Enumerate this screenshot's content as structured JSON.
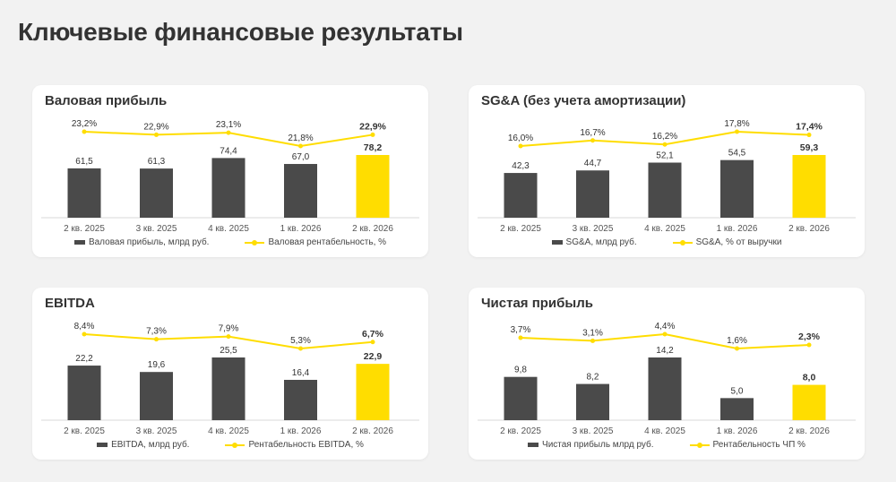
{
  "page": {
    "title": "Ключевые финансовые результаты"
  },
  "colors": {
    "bar": "#4a4a4a",
    "highlight": "#FFDD00",
    "line": "#FFDD00",
    "axis": "#d9d9d9"
  },
  "chart_data": [
    {
      "type": "bar",
      "title": "Валовая прибыль",
      "categories": [
        "2 кв. 2025",
        "3 кв. 2025",
        "4 кв. 2025",
        "1 кв. 2026",
        "2 кв. 2026"
      ],
      "series": [
        {
          "name": "Валовая прибыль, млрд руб.",
          "type": "bar",
          "values": [
            61.5,
            61.3,
            74.4,
            67.0,
            78.2
          ],
          "labels": [
            "61,5",
            "61,3",
            "74,4",
            "67,0",
            "78,2"
          ]
        },
        {
          "name": "Валовая рентабельность, %",
          "type": "line",
          "values": [
            23.2,
            22.9,
            23.1,
            21.8,
            22.9
          ],
          "labels": [
            "23,2%",
            "22,9%",
            "23,1%",
            "21,8%",
            "22,9%"
          ]
        }
      ],
      "highlight_index": 4,
      "grid": false,
      "legend": "bottom"
    },
    {
      "type": "bar",
      "title": "SG&A (без учета амортизации)",
      "categories": [
        "2 кв. 2025",
        "3 кв. 2025",
        "4 кв. 2025",
        "1 кв. 2026",
        "2 кв. 2026"
      ],
      "series": [
        {
          "name": "SG&A, млрд руб.",
          "type": "bar",
          "values": [
            42.3,
            44.7,
            52.1,
            54.5,
            59.3
          ],
          "labels": [
            "42,3",
            "44,7",
            "52,1",
            "54,5",
            "59,3"
          ]
        },
        {
          "name": "SG&A, % от выручки",
          "type": "line",
          "values": [
            16.0,
            16.7,
            16.2,
            17.8,
            17.4
          ],
          "labels": [
            "16,0%",
            "16,7%",
            "16,2%",
            "17,8%",
            "17,4%"
          ]
        }
      ],
      "highlight_index": 4,
      "grid": false,
      "legend": "bottom"
    },
    {
      "type": "bar",
      "title": "EBITDA",
      "categories": [
        "2 кв. 2025",
        "3 кв. 2025",
        "4 кв. 2025",
        "1 кв. 2026",
        "2 кв. 2026"
      ],
      "series": [
        {
          "name": "EBITDA, млрд руб.",
          "type": "bar",
          "values": [
            22.2,
            19.6,
            25.5,
            16.4,
            22.9
          ],
          "labels": [
            "22,2",
            "19,6",
            "25,5",
            "16,4",
            "22,9"
          ]
        },
        {
          "name": "Рентабельность EBITDA, %",
          "type": "line",
          "values": [
            8.4,
            7.3,
            7.9,
            5.3,
            6.7
          ],
          "labels": [
            "8,4%",
            "7,3%",
            "7,9%",
            "5,3%",
            "6,7%"
          ]
        }
      ],
      "highlight_index": 4,
      "grid": false,
      "legend": "bottom"
    },
    {
      "type": "bar",
      "title": "Чистая прибыль",
      "categories": [
        "2 кв. 2025",
        "3 кв. 2025",
        "4 кв. 2025",
        "1 кв. 2026",
        "2 кв. 2026"
      ],
      "series": [
        {
          "name": "Чистая прибыль млрд руб.",
          "type": "bar",
          "values": [
            9.8,
            8.2,
            14.2,
            5.0,
            8.0
          ],
          "labels": [
            "9,8",
            "8,2",
            "14,2",
            "5,0",
            "8,0"
          ]
        },
        {
          "name": "Рентабельность ЧП %",
          "type": "line",
          "values": [
            3.7,
            3.1,
            4.4,
            1.6,
            2.3
          ],
          "labels": [
            "3,7%",
            "3,1%",
            "4,4%",
            "1,6%",
            "2,3%"
          ]
        }
      ],
      "highlight_index": 4,
      "grid": false,
      "legend": "bottom"
    }
  ]
}
